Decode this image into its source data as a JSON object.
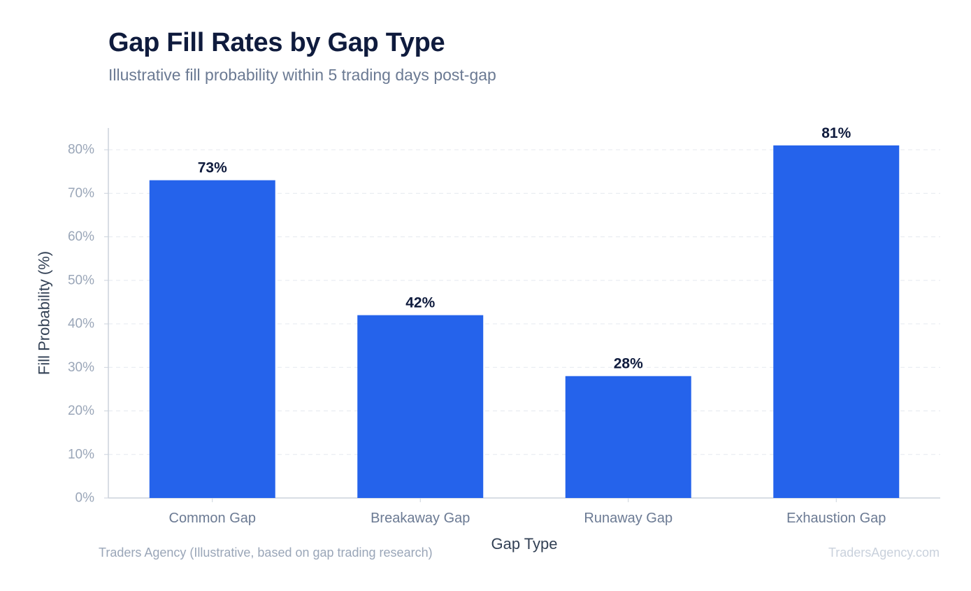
{
  "header": {
    "title": "Gap Fill Rates by Gap Type",
    "subtitle": "Illustrative fill probability within 5 trading days post-gap"
  },
  "chart_data": {
    "type": "bar",
    "title": "Gap Fill Rates by Gap Type",
    "subtitle": "Illustrative fill probability within 5 trading days post-gap",
    "categories": [
      "Common Gap",
      "Breakaway Gap",
      "Runaway Gap",
      "Exhaustion Gap"
    ],
    "values": [
      73,
      42,
      28,
      81
    ],
    "data_labels": [
      "73%",
      "42%",
      "28%",
      "81%"
    ],
    "xlabel": "Gap Type",
    "ylabel": "Fill Probability (%)",
    "ylim": [
      0,
      85
    ],
    "yticks": [
      0,
      10,
      20,
      30,
      40,
      50,
      60,
      70,
      80
    ],
    "ytick_labels": [
      "0%",
      "10%",
      "20%",
      "30%",
      "40%",
      "50%",
      "60%",
      "70%",
      "80%"
    ],
    "grid": true,
    "legend": "none",
    "bar_color": "#2563eb"
  },
  "footer": {
    "source": "Traders Agency (Illustrative, based on gap trading research)",
    "watermark": "TradersAgency.com"
  },
  "colors": {
    "title": "#0f1b3d",
    "subtitle": "#6b7a93",
    "bar": "#2563eb",
    "data_label": "#0f1b3d",
    "tick_label": "#9aa6b8",
    "category_label": "#6b7a93",
    "axis_title": "#334155",
    "grid": "#e5e9ef",
    "axis": "#cbd2dc",
    "watermark": "#c9d1dc"
  }
}
